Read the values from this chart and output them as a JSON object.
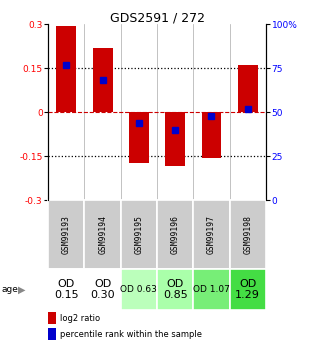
{
  "title": "GDS2591 / 272",
  "samples": [
    "GSM99193",
    "GSM99194",
    "GSM99195",
    "GSM99196",
    "GSM99197",
    "GSM99198"
  ],
  "log2_ratio": [
    0.295,
    0.22,
    -0.175,
    -0.185,
    -0.155,
    0.16
  ],
  "percentile_rank": [
    0.77,
    0.68,
    0.44,
    0.4,
    0.48,
    0.52
  ],
  "bar_color": "#cc0000",
  "dot_color": "#0000cc",
  "ylim": [
    -0.3,
    0.3
  ],
  "yticks_left": [
    -0.3,
    -0.15,
    0,
    0.15,
    0.3
  ],
  "yticks_right": [
    0,
    25,
    50,
    75,
    100
  ],
  "hlines_dotted": [
    -0.15,
    0.15
  ],
  "hline_zero": 0,
  "age_labels": [
    "OD\n0.15",
    "OD\n0.30",
    "OD 0.63",
    "OD\n0.85",
    "OD 1.07",
    "OD\n1.29"
  ],
  "age_bg_colors": [
    "#ffffff",
    "#ffffff",
    "#bbffbb",
    "#aaffaa",
    "#77ee77",
    "#44dd44"
  ],
  "age_text_sizes": [
    8,
    8,
    6.5,
    8,
    6.5,
    8
  ],
  "sample_bg_color": "#cccccc",
  "bar_width": 0.55,
  "dot_size": 4,
  "zero_line_color": "#cc0000",
  "legend_red_label": "log2 ratio",
  "legend_blue_label": "percentile rank within the sample"
}
